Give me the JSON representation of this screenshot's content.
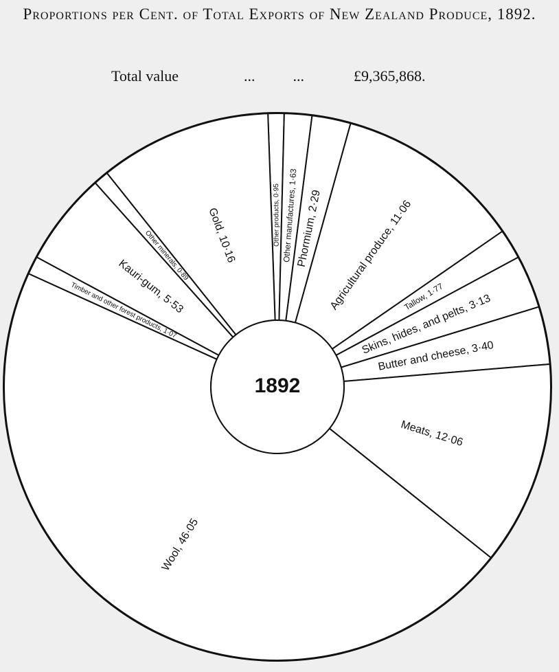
{
  "chart_data": {
    "type": "pie",
    "title": "Proportions per Cent. of Total Exports of New Zealand Produce, 1892.",
    "total_label": "Total value",
    "total_dots": "...          ...",
    "total_value": "£9,365,868.",
    "center_label": "1892",
    "color": "#ffffff",
    "values": [
      0.95,
      1.63,
      2.29,
      11.06,
      1.77,
      3.13,
      3.4,
      12.06,
      46.05,
      1.07,
      5.53,
      0.89,
      10.16
    ],
    "value_labels": [
      "Other products, 0·95",
      "Other manufactures, 1·63",
      "Phormium, 2·29",
      "Agricultural produce, 11·06",
      "Tallow, 1·77",
      "Skins, hides, and pelts, 3·13",
      "Butter and cheese, 3·40",
      "Meats, 12·06",
      "Wool, 46·05",
      "Timber and other forest products, 1·07",
      "Kauri-gum, 5·53",
      "Other minerals, 0·89",
      "Gold, 10·16"
    ]
  }
}
